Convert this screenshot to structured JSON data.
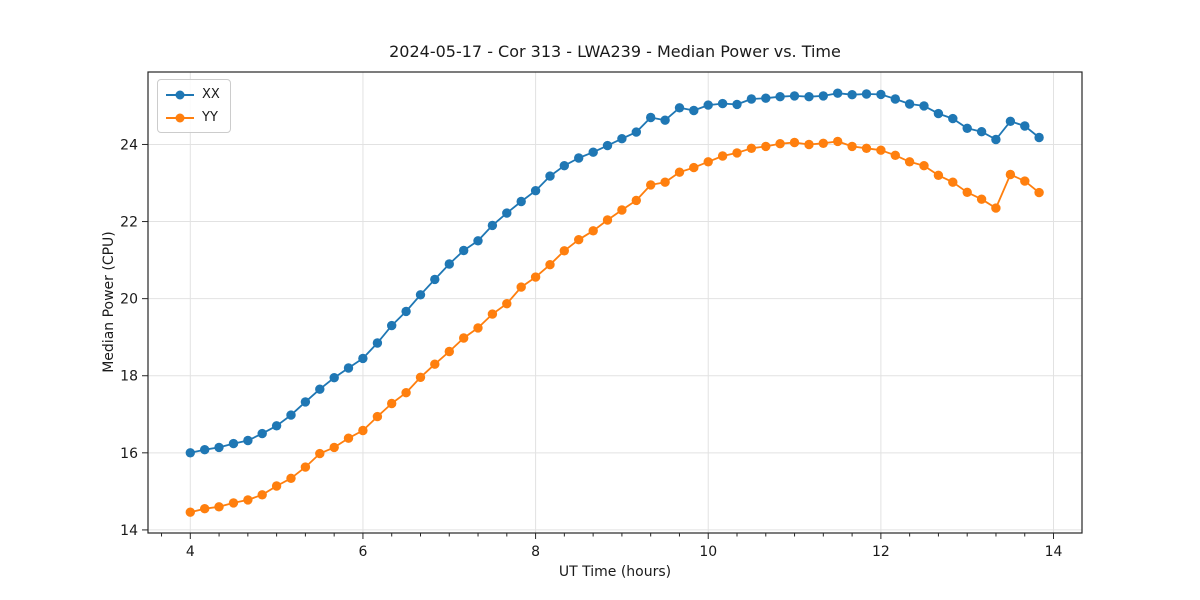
{
  "figure": {
    "background": "#ffffff"
  },
  "chart_data": {
    "type": "line",
    "title": "2024-05-17 - Cor 313 - LWA239 - Median Power vs. Time",
    "xlabel": "UT Time (hours)",
    "ylabel": "Median Power (CPU)",
    "xlim": [
      3.51,
      14.33
    ],
    "ylim": [
      13.92,
      25.88
    ],
    "xticks": [
      4,
      6,
      8,
      10,
      12,
      14
    ],
    "yticks": [
      14,
      16,
      18,
      20,
      22,
      24
    ],
    "minor_xtick_step": 0.3333,
    "grid": true,
    "legend_position": "upper left",
    "grid_color": "#e2e2e2",
    "axis_color": "#262626",
    "x": [
      4.0,
      4.167,
      4.333,
      4.5,
      4.667,
      4.833,
      5.0,
      5.167,
      5.333,
      5.5,
      5.667,
      5.833,
      6.0,
      6.167,
      6.333,
      6.5,
      6.667,
      6.833,
      7.0,
      7.167,
      7.333,
      7.5,
      7.667,
      7.833,
      8.0,
      8.167,
      8.333,
      8.5,
      8.667,
      8.833,
      9.0,
      9.167,
      9.333,
      9.5,
      9.667,
      9.833,
      10.0,
      10.167,
      10.333,
      10.5,
      10.667,
      10.833,
      11.0,
      11.167,
      11.333,
      11.5,
      11.667,
      11.833,
      12.0,
      12.167,
      12.333,
      12.5,
      12.667,
      12.833,
      13.0,
      13.167,
      13.333,
      13.5,
      13.667,
      13.833
    ],
    "series": [
      {
        "name": "XX",
        "color": "#1f77b4",
        "marker": "circle",
        "values": [
          16.0,
          16.08,
          16.14,
          16.24,
          16.32,
          16.5,
          16.7,
          16.98,
          17.32,
          17.65,
          17.95,
          18.2,
          18.45,
          18.85,
          19.3,
          19.67,
          20.1,
          20.5,
          20.9,
          21.25,
          21.5,
          21.9,
          22.22,
          22.52,
          22.8,
          23.18,
          23.45,
          23.65,
          23.8,
          23.97,
          24.15,
          24.32,
          24.7,
          24.63,
          24.95,
          24.88,
          25.02,
          25.06,
          25.04,
          25.18,
          25.2,
          25.24,
          25.26,
          25.24,
          25.26,
          25.33,
          25.29,
          25.31,
          25.3,
          25.18,
          25.05,
          25.0,
          24.8,
          24.67,
          24.42,
          24.33,
          24.13,
          24.6,
          24.48,
          24.18
        ]
      },
      {
        "name": "YY",
        "color": "#ff7f0e",
        "marker": "circle",
        "values": [
          14.46,
          14.55,
          14.6,
          14.7,
          14.78,
          14.91,
          15.14,
          15.34,
          15.63,
          15.98,
          16.14,
          16.38,
          16.58,
          16.94,
          17.28,
          17.56,
          17.96,
          18.3,
          18.63,
          18.98,
          19.24,
          19.6,
          19.87,
          20.3,
          20.56,
          20.88,
          21.24,
          21.53,
          21.76,
          22.04,
          22.3,
          22.55,
          22.95,
          23.02,
          23.28,
          23.4,
          23.55,
          23.7,
          23.78,
          23.9,
          23.95,
          24.02,
          24.05,
          24.0,
          24.03,
          24.08,
          23.95,
          23.9,
          23.85,
          23.72,
          23.55,
          23.45,
          23.2,
          23.02,
          22.76,
          22.58,
          22.35,
          23.22,
          23.05,
          22.75
        ]
      }
    ]
  }
}
